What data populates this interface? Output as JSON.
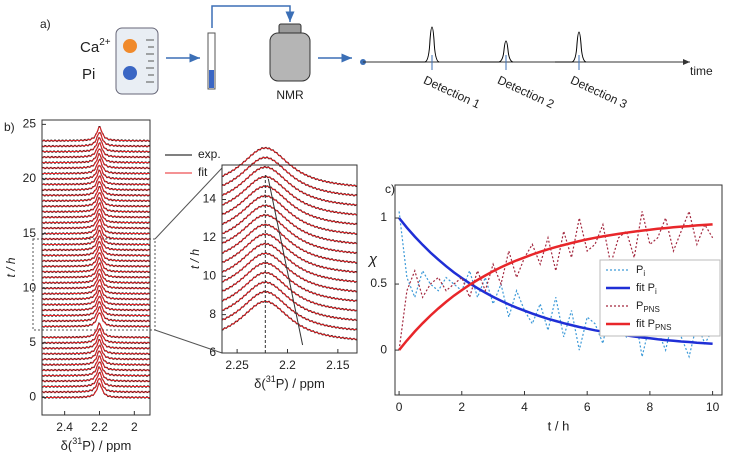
{
  "schematic": {
    "panel_label": "a)",
    "ion": "Ca",
    "ion_charge": "2+",
    "phosphate": "Pi",
    "instrument": "NMR",
    "detections": [
      "Detection 1",
      "Detection 2",
      "Detection 3"
    ],
    "time_label": "time"
  },
  "chart_data": [
    {
      "type": "spectra",
      "panel_label": "b)",
      "ylabel": "t / h",
      "xlabel": [
        "δ(",
        "31",
        "P) / ppm"
      ],
      "xlim": [
        2.53,
        1.91
      ],
      "xticks": [
        2.4,
        2.2,
        2
      ],
      "ylim": [
        -1.6,
        25.4
      ],
      "yticks": [
        0,
        5,
        10,
        15,
        20,
        25
      ],
      "peak_ppm": 2.2,
      "offsets": [
        0,
        0.5,
        1,
        1.5,
        2,
        2.5,
        3,
        3.5,
        4,
        4.5,
        5,
        5.5,
        6.5,
        7,
        7.5,
        8,
        8.5,
        9,
        9.5,
        10,
        10.5,
        11,
        11.5,
        12,
        12.5,
        13,
        13.5,
        14,
        14.5,
        15,
        15.5,
        16,
        16.5,
        17,
        17.5,
        18,
        18.5,
        19,
        19.5,
        20,
        20.5,
        21,
        21.5,
        22,
        22.5,
        23,
        23.5
      ],
      "series": [
        {
          "name": "exp.",
          "color": "#000000"
        },
        {
          "name": "fit",
          "color": "#e8262a"
        }
      ]
    },
    {
      "type": "spectra",
      "ylabel": "t / h",
      "xlabel": [
        "δ(",
        "31",
        "P) / ppm"
      ],
      "xlim": [
        2.265,
        2.131
      ],
      "xticks": [
        2.25,
        2.2,
        2.15
      ],
      "ylim": [
        6,
        15.8
      ],
      "yticks": [
        6,
        8,
        10,
        12,
        14
      ],
      "peak_ppm": 2.222,
      "offsets": [
        6.5,
        7,
        7.5,
        8,
        8.5,
        9,
        9.5,
        10,
        10.5,
        11,
        11.5,
        12,
        12.5,
        13,
        13.5,
        14,
        14.5
      ],
      "series": [
        {
          "name": "exp.",
          "color": "#000000"
        },
        {
          "name": "fit",
          "color": "#e8262a"
        }
      ]
    },
    {
      "type": "line",
      "panel_label": "c)",
      "ylabel": "χ",
      "xlabel": "t / h",
      "xlim": [
        -0.13,
        10.3
      ],
      "xticks": [
        0,
        2,
        4,
        6,
        8,
        10
      ],
      "ylim": [
        -0.34,
        1.25
      ],
      "yticks": [
        0,
        0.5,
        1
      ],
      "x": [
        0,
        0.25,
        0.5,
        0.75,
        1,
        1.25,
        1.5,
        1.75,
        2,
        2.25,
        2.5,
        2.75,
        3,
        3.25,
        3.5,
        3.75,
        4,
        4.25,
        4.5,
        4.75,
        5,
        5.25,
        5.5,
        5.75,
        6,
        6.25,
        6.5,
        6.75,
        7,
        7.25,
        7.5,
        7.75,
        8,
        8.25,
        8.5,
        8.75,
        9,
        9.25,
        9.5,
        9.75,
        10
      ],
      "series": [
        {
          "name": "P",
          "name_sub": "i",
          "color": "#3d9ad8",
          "dash": true,
          "values": [
            1.05,
            0.55,
            0.4,
            0.6,
            0.5,
            0.45,
            0.55,
            0.5,
            0.45,
            0.6,
            0.4,
            0.55,
            0.35,
            0.5,
            0.25,
            0.45,
            0.3,
            0.2,
            0.35,
            0.15,
            0.4,
            0.1,
            0.3,
            0.0,
            0.25,
            0.2,
            0.05,
            0.35,
            0.15,
            0.1,
            0.3,
            -0.05,
            0.2,
            0.15,
            0.0,
            0.25,
            0.1,
            -0.05,
            0.2,
            0.05,
            0.15
          ]
        },
        {
          "name": "fit P",
          "name_sub": "i",
          "color": "#1f2fd6",
          "dash": false,
          "values": [
            1,
            0.927,
            0.859,
            0.797,
            0.739,
            0.685,
            0.635,
            0.588,
            0.546,
            0.506,
            0.469,
            0.435,
            0.403,
            0.373,
            0.346,
            0.321,
            0.298,
            0.276,
            0.256,
            0.237,
            0.22,
            0.204,
            0.189,
            0.175,
            0.162,
            0.15,
            0.139,
            0.129,
            0.12,
            0.111,
            0.103,
            0.095,
            0.089,
            0.082,
            0.076,
            0.07,
            0.065,
            0.061,
            0.056,
            0.052,
            0.048
          ]
        },
        {
          "name": "P",
          "name_sub": "PNS",
          "color": "#a3283f",
          "dash": true,
          "values": [
            0.0,
            0.45,
            0.6,
            0.4,
            0.5,
            0.55,
            0.45,
            0.5,
            0.55,
            0.4,
            0.6,
            0.45,
            0.65,
            0.5,
            0.75,
            0.55,
            0.7,
            0.8,
            0.65,
            0.85,
            0.6,
            0.9,
            0.7,
            1.0,
            0.75,
            0.8,
            0.95,
            0.65,
            0.85,
            0.9,
            0.7,
            1.05,
            0.8,
            0.85,
            1.0,
            0.75,
            0.9,
            1.05,
            0.8,
            0.95,
            0.85
          ]
        },
        {
          "name": "fit P",
          "name_sub": "PNS",
          "color": "#e8262a",
          "dash": false,
          "values": [
            0,
            0.073,
            0.141,
            0.203,
            0.261,
            0.315,
            0.365,
            0.412,
            0.454,
            0.494,
            0.531,
            0.565,
            0.597,
            0.627,
            0.654,
            0.679,
            0.702,
            0.724,
            0.744,
            0.763,
            0.78,
            0.796,
            0.811,
            0.825,
            0.838,
            0.85,
            0.861,
            0.871,
            0.88,
            0.889,
            0.897,
            0.905,
            0.911,
            0.918,
            0.924,
            0.93,
            0.935,
            0.939,
            0.944,
            0.948,
            0.952
          ]
        }
      ]
    }
  ]
}
